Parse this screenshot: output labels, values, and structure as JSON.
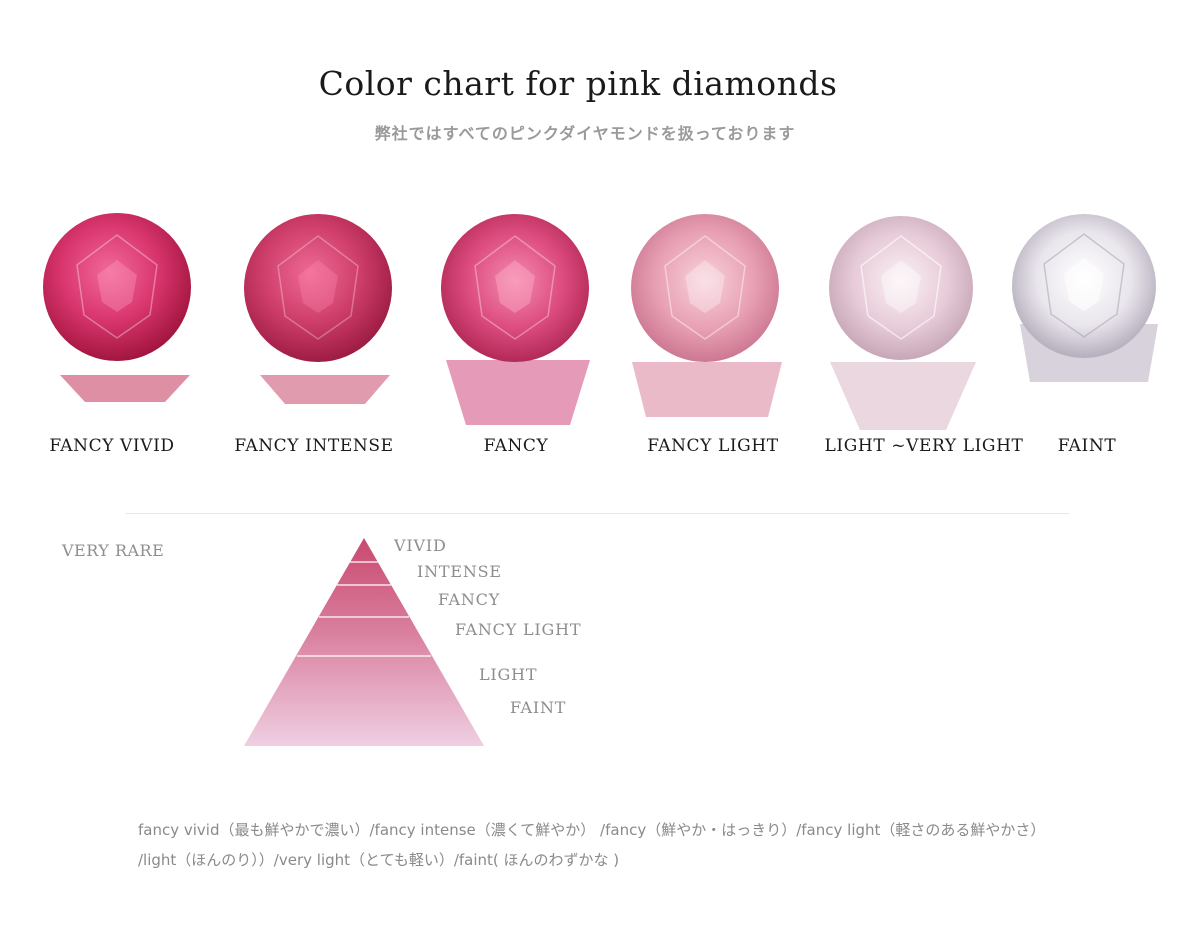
{
  "header": {
    "title": "Color chart for pink diamonds",
    "subtitle": "弊社ではすべてのピンクダイヤモンドを扱っております"
  },
  "gems": [
    {
      "label": "FANCY VIVID",
      "color": "#d8356d"
    },
    {
      "label": "FANCY INTENSE",
      "color": "#d4426f"
    },
    {
      "label": "FANCY",
      "color": "#dc4b7d"
    },
    {
      "label": "FANCY LIGHT",
      "color": "#e8a0b4"
    },
    {
      "label": "LIGHT ~VERY LIGHT",
      "color": "#ead2de"
    },
    {
      "label": "FAINT",
      "color": "#eeeaf0"
    }
  ],
  "rarity": {
    "label": "VERY RARE",
    "levels": [
      "VIVID",
      "INTENSE",
      "FANCY",
      "FANCY LIGHT",
      "LIGHT",
      "FAINT"
    ]
  },
  "notes": {
    "line1": "fancy vivid（最も鮮やかで濃い）/fancy intense（濃くて鮮やか） /fancy（鮮やか・はっきり）/fancy light（軽さのある鮮やかさ）",
    "line2": "/light（ほんのり））/very light（とても軽い）/faint( ほんのわずかな )"
  }
}
